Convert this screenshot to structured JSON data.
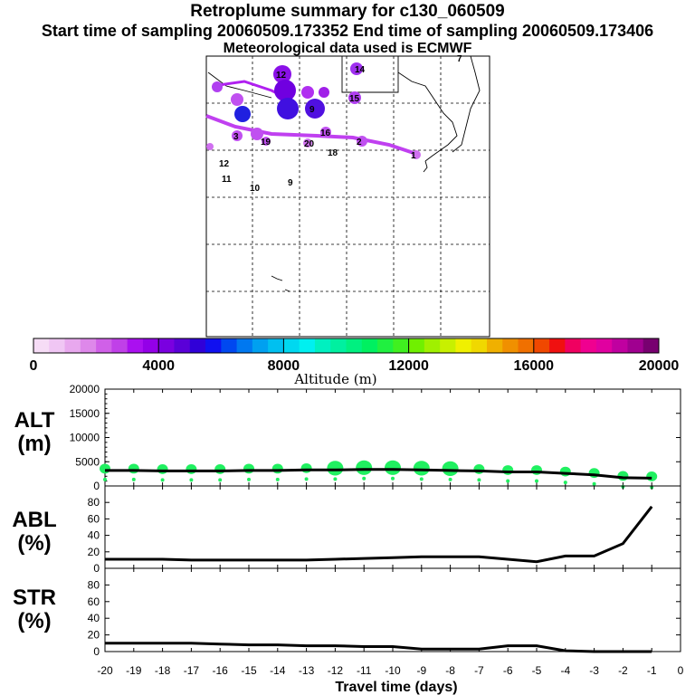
{
  "header": {
    "title": "Retroplume summary for c130_060509",
    "sampling": "Start time of sampling 20060509.173352     End time of sampling 20060509.173406",
    "met": "Meteorological data used is ECMWF"
  },
  "colorbar": {
    "label": "Altitude (m)",
    "ticks": [
      "0",
      "4000",
      "8000",
      "12000",
      "16000",
      "20000"
    ],
    "colors": [
      "#f6dcf6",
      "#f0c6f4",
      "#e8a8ee",
      "#de88ea",
      "#d060e8",
      "#c040e8",
      "#aa10f0",
      "#9400e8",
      "#7a00e0",
      "#5a00d8",
      "#3000d8",
      "#1010f0",
      "#0048f0",
      "#0078f0",
      "#00a0f0",
      "#00c0f0",
      "#00d8f0",
      "#00f0f0",
      "#00f0c0",
      "#00f0a0",
      "#00f080",
      "#00f060",
      "#20f040",
      "#40f020",
      "#70f000",
      "#a0f000",
      "#c8f000",
      "#f0f000",
      "#f0d800",
      "#f0b000",
      "#f09000",
      "#f07000",
      "#f04800",
      "#f01010",
      "#f00060",
      "#f00090",
      "#e000a0",
      "#c000a0",
      "#a00090",
      "#780070"
    ]
  },
  "map": {
    "labels": [
      "12",
      "13",
      "10",
      "11",
      "9",
      "20",
      "18",
      "19",
      "16",
      "15",
      "14",
      "8",
      "7",
      "6",
      "5",
      "4",
      "3",
      "2",
      "1",
      "17"
    ]
  },
  "chart_data": [
    {
      "type": "line",
      "panel": "ALT",
      "ylabel": "ALT (m)",
      "ylim": [
        0,
        20000
      ],
      "yticks": [
        "0",
        "5000",
        "10000",
        "15000",
        "20000"
      ],
      "x": [
        -20,
        -19,
        -18,
        -17,
        -16,
        -15,
        -14,
        -13,
        -12,
        -11,
        -10,
        -9,
        -8,
        -7,
        -6,
        -5,
        -4,
        -3,
        -2,
        -1
      ],
      "series": [
        {
          "name": "mean altitude",
          "values": [
            3200,
            3200,
            3100,
            3100,
            3100,
            3200,
            3200,
            3300,
            3300,
            3400,
            3400,
            3300,
            3200,
            3100,
            2900,
            2900,
            2600,
            2300,
            1700,
            1600
          ]
        }
      ]
    },
    {
      "type": "line",
      "panel": "ABL",
      "ylabel": "ABL (%)",
      "ylim": [
        0,
        100
      ],
      "yticks": [
        "0",
        "20",
        "40",
        "60",
        "80"
      ],
      "x": [
        -20,
        -19,
        -18,
        -17,
        -16,
        -15,
        -14,
        -13,
        -12,
        -11,
        -10,
        -9,
        -8,
        -7,
        -6,
        -5,
        -4,
        -3,
        -2,
        -1
      ],
      "series": [
        {
          "name": "boundary layer fraction",
          "values": [
            11,
            11,
            11,
            10,
            10,
            10,
            10,
            10,
            11,
            12,
            13,
            14,
            14,
            14,
            11,
            8,
            15,
            15,
            30,
            75
          ]
        }
      ]
    },
    {
      "type": "line",
      "panel": "STR",
      "ylabel": "STR (%)",
      "ylim": [
        0,
        100
      ],
      "yticks": [
        "0",
        "20",
        "40",
        "60",
        "80"
      ],
      "x": [
        -20,
        -19,
        -18,
        -17,
        -16,
        -15,
        -14,
        -13,
        -12,
        -11,
        -10,
        -9,
        -8,
        -7,
        -6,
        -5,
        -4,
        -3,
        -2,
        -1
      ],
      "series": [
        {
          "name": "stratospheric fraction",
          "values": [
            10,
            10,
            10,
            10,
            9,
            8,
            8,
            7,
            7,
            6,
            6,
            3,
            3,
            3,
            7,
            7,
            1,
            0,
            0,
            0
          ]
        }
      ]
    }
  ],
  "xaxis": {
    "label": "Travel time (days)",
    "ticks": [
      "-20",
      "-19",
      "-18",
      "-17",
      "-16",
      "-15",
      "-14",
      "-13",
      "-12",
      "-11",
      "-10",
      "-9",
      "-8",
      "-7",
      "-6",
      "-5",
      "-4",
      "-3",
      "-2",
      "-1",
      "0"
    ]
  },
  "panels": {
    "alt": {
      "name": "ALT",
      "unit": "(m)"
    },
    "abl": {
      "name": "ABL",
      "unit": "(%)"
    },
    "str": {
      "name": "STR",
      "unit": "(%)"
    }
  }
}
